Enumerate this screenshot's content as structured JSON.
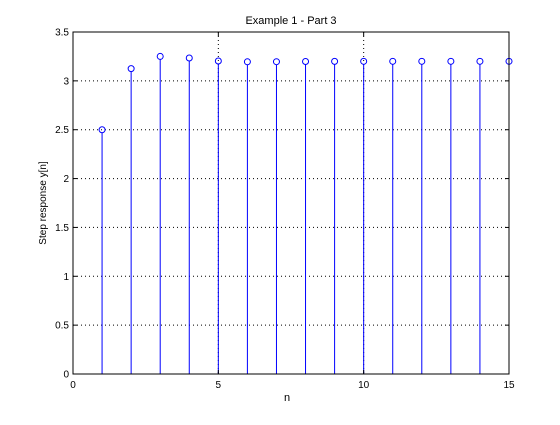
{
  "chart_data": {
    "type": "stem",
    "title": "Example 1 - Part 3",
    "xlabel": "n",
    "ylabel": "Step response y[n]",
    "xlim": [
      0,
      15
    ],
    "ylim": [
      0,
      3.5
    ],
    "x_ticks": [
      0,
      5,
      10,
      15
    ],
    "x_tick_labels": [
      "0",
      "5",
      "10",
      "15"
    ],
    "y_ticks": [
      0,
      0.5,
      1,
      1.5,
      2,
      2.5,
      3,
      3.5
    ],
    "y_tick_labels": [
      "0",
      "0.5",
      "1",
      "1.5",
      "2",
      "2.5",
      "3",
      "3.5"
    ],
    "grid": true,
    "series": [
      {
        "color": "#0000ff",
        "marker": "open-circle",
        "x": [
          1,
          2,
          3,
          4,
          5,
          6,
          7,
          8,
          9,
          10,
          11,
          12,
          13,
          14,
          15
        ],
        "values": [
          2.5,
          3.125,
          3.25,
          3.234,
          3.203,
          3.195,
          3.196,
          3.198,
          3.199,
          3.2,
          3.2,
          3.2,
          3.2,
          3.2,
          3.2
        ]
      }
    ]
  }
}
